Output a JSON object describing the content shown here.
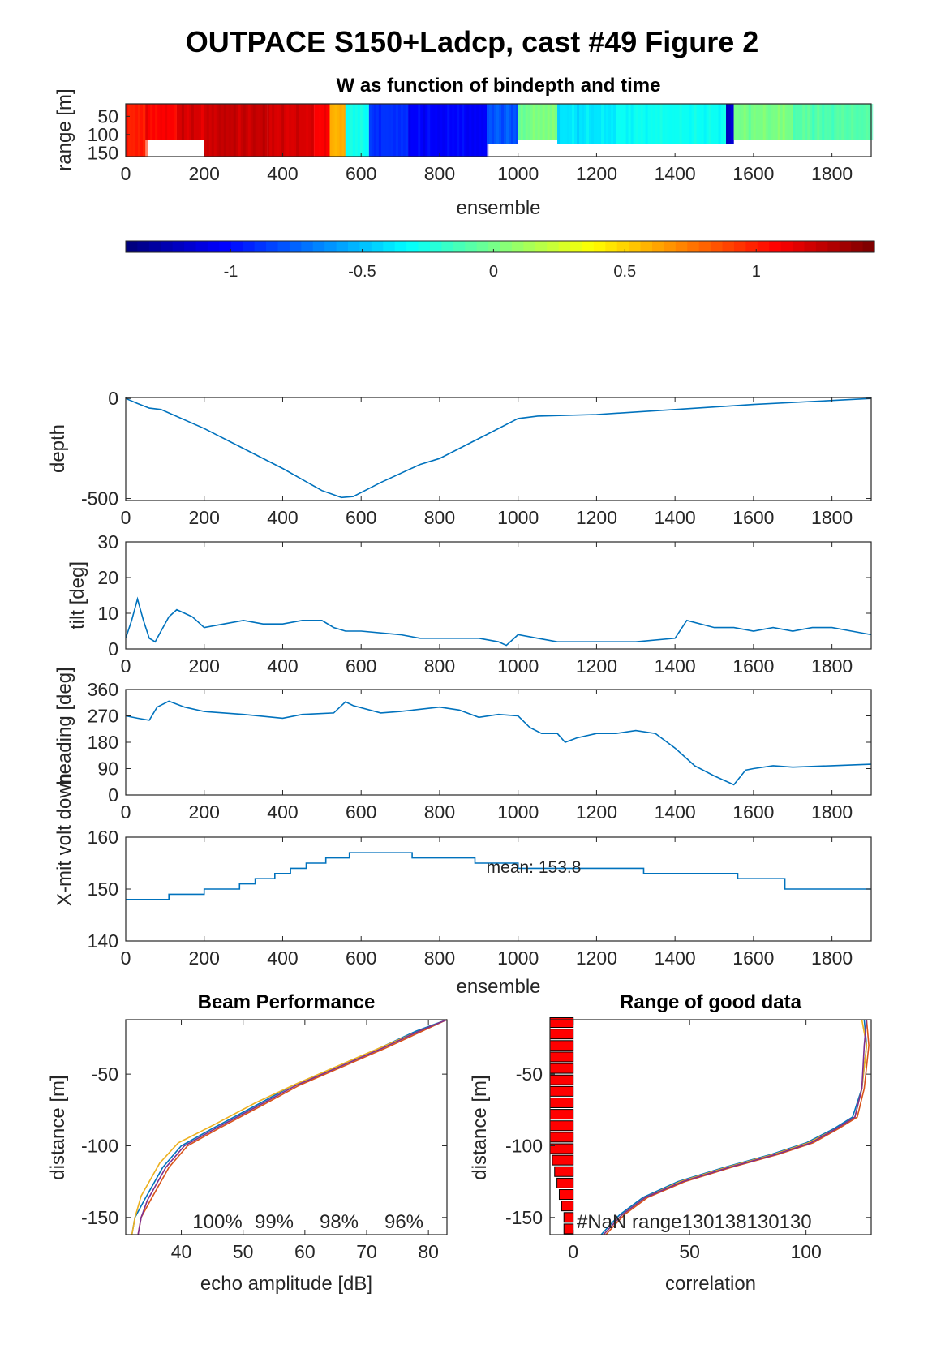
{
  "figure_title": "OUTPACE S150+Ladcp, cast #49 Figure 2",
  "chart_data": [
    {
      "id": "w",
      "type": "heatmap",
      "title": "W as function of bindepth and time",
      "xlabel": "ensemble",
      "ylabel": "range [m]",
      "xlim": [
        0,
        1900
      ],
      "ylim": [
        16,
        160
      ],
      "xticks": [
        0,
        200,
        400,
        600,
        800,
        1000,
        1200,
        1400,
        1600,
        1800
      ],
      "yticks": [
        50,
        100,
        150
      ],
      "colorbar": {
        "ticks": [
          -1,
          -0.5,
          0,
          0.5,
          1
        ],
        "tick_labels": [
          "-1",
          "-0.5",
          "0",
          "0.5",
          "1"
        ],
        "clim": [
          -1.4,
          1.45
        ]
      },
      "segments": [
        {
          "x": [
            0,
            50
          ],
          "w": 1.0,
          "bottom": 160
        },
        {
          "x": [
            50,
            130
          ],
          "w": 1.1,
          "bottom": 115
        },
        {
          "x": [
            130,
            200
          ],
          "w": 1.2,
          "bottom": 115
        },
        {
          "x": [
            200,
            360
          ],
          "w": 1.25,
          "bottom": 160
        },
        {
          "x": [
            360,
            480
          ],
          "w": 1.2,
          "bottom": 160
        },
        {
          "x": [
            480,
            520
          ],
          "w": 1.1,
          "bottom": 160
        },
        {
          "x": [
            520,
            560
          ],
          "w": 0.6,
          "bottom": 160
        },
        {
          "x": [
            560,
            620
          ],
          "w": -0.3,
          "bottom": 160
        },
        {
          "x": [
            620,
            720
          ],
          "w": -0.9,
          "bottom": 160
        },
        {
          "x": [
            720,
            920
          ],
          "w": -1.05,
          "bottom": 160
        },
        {
          "x": [
            920,
            1000
          ],
          "w": -0.8,
          "bottom": 125
        },
        {
          "x": [
            1000,
            1100
          ],
          "w": 0.0,
          "bottom": 115
        },
        {
          "x": [
            1100,
            1250
          ],
          "w": -0.4,
          "bottom": 125
        },
        {
          "x": [
            1250,
            1530
          ],
          "w": -0.3,
          "bottom": 125
        },
        {
          "x": [
            1530,
            1550
          ],
          "w": -1.2,
          "bottom": 125
        },
        {
          "x": [
            1550,
            1700
          ],
          "w": 0.0,
          "bottom": 115
        },
        {
          "x": [
            1700,
            1900
          ],
          "w": -0.1,
          "bottom": 115
        }
      ]
    },
    {
      "id": "depth",
      "type": "line",
      "ylabel": "depth",
      "xlim": [
        0,
        1900
      ],
      "ylim": [
        -510,
        5
      ],
      "xticks": [
        0,
        200,
        400,
        600,
        800,
        1000,
        1200,
        1400,
        1600,
        1800
      ],
      "yticks": [
        0,
        -500
      ],
      "x": [
        0,
        30,
        60,
        90,
        200,
        300,
        400,
        500,
        550,
        580,
        650,
        750,
        800,
        900,
        1000,
        1050,
        1200,
        1400,
        1600,
        1800,
        1900
      ],
      "y": [
        0,
        -25,
        -48,
        -55,
        -150,
        -250,
        -350,
        -460,
        -495,
        -490,
        -420,
        -330,
        -300,
        -200,
        -100,
        -88,
        -80,
        -55,
        -30,
        -10,
        0
      ]
    },
    {
      "id": "tilt",
      "type": "line",
      "ylabel": "tilt [deg]",
      "xlim": [
        0,
        1900
      ],
      "ylim": [
        0,
        30
      ],
      "xticks": [
        0,
        200,
        400,
        600,
        800,
        1000,
        1200,
        1400,
        1600,
        1800
      ],
      "yticks": [
        0,
        10,
        20,
        30
      ],
      "x": [
        0,
        15,
        30,
        45,
        60,
        75,
        90,
        110,
        130,
        150,
        170,
        190,
        200,
        250,
        300,
        350,
        400,
        450,
        500,
        530,
        560,
        600,
        700,
        750,
        800,
        900,
        950,
        970,
        1000,
        1050,
        1100,
        1200,
        1300,
        1400,
        1430,
        1500,
        1550,
        1600,
        1650,
        1700,
        1750,
        1800,
        1850,
        1900
      ],
      "y": [
        3,
        8,
        14,
        8,
        3,
        2,
        5,
        9,
        11,
        10,
        9,
        7,
        6,
        7,
        8,
        7,
        7,
        8,
        8,
        6,
        5,
        5,
        4,
        3,
        3,
        3,
        2,
        1,
        4,
        3,
        2,
        2,
        2,
        3,
        8,
        6,
        6,
        5,
        6,
        5,
        6,
        6,
        5,
        4
      ]
    },
    {
      "id": "heading",
      "type": "line",
      "ylabel": "heading [deg]",
      "xlim": [
        0,
        1900
      ],
      "ylim": [
        0,
        360
      ],
      "xticks": [
        0,
        200,
        400,
        600,
        800,
        1000,
        1200,
        1400,
        1600,
        1800
      ],
      "yticks": [
        0,
        90,
        180,
        270,
        360
      ],
      "x": [
        0,
        30,
        60,
        80,
        110,
        150,
        200,
        300,
        400,
        450,
        530,
        560,
        580,
        650,
        700,
        800,
        850,
        900,
        950,
        1000,
        1030,
        1060,
        1100,
        1120,
        1150,
        1200,
        1250,
        1300,
        1350,
        1400,
        1450,
        1500,
        1550,
        1580,
        1600,
        1650,
        1700,
        1800,
        1900
      ],
      "y": [
        270,
        262,
        255,
        300,
        320,
        300,
        285,
        275,
        262,
        275,
        280,
        318,
        305,
        280,
        285,
        300,
        290,
        265,
        275,
        270,
        230,
        210,
        210,
        180,
        195,
        210,
        210,
        220,
        210,
        160,
        100,
        65,
        35,
        85,
        90,
        100,
        95,
        100,
        105
      ]
    },
    {
      "id": "xmit",
      "type": "line",
      "xlabel": "ensemble",
      "ylabel": "X-mit volt down",
      "annotation": "mean: 153.8",
      "xlim": [
        0,
        1900
      ],
      "ylim": [
        140,
        160
      ],
      "xticks": [
        0,
        200,
        400,
        600,
        800,
        1000,
        1200,
        1400,
        1600,
        1800
      ],
      "yticks": [
        140,
        150,
        160
      ],
      "x": [
        0,
        50,
        110,
        110,
        200,
        200,
        290,
        290,
        330,
        330,
        380,
        380,
        420,
        420,
        460,
        460,
        510,
        510,
        570,
        570,
        730,
        730,
        890,
        890,
        1000,
        1000,
        1320,
        1320,
        1560,
        1560,
        1680,
        1680,
        1900
      ],
      "y": [
        148,
        148,
        148,
        149,
        149,
        150,
        150,
        151,
        151,
        152,
        152,
        153,
        153,
        154,
        154,
        155,
        155,
        156,
        156,
        157,
        157,
        156,
        156,
        155,
        155,
        154,
        154,
        153,
        153,
        152,
        152,
        150,
        150
      ]
    },
    {
      "id": "beam",
      "type": "line",
      "title": "Beam Performance",
      "xlabel": "echo amplitude [dB]",
      "ylabel": "distance [m]",
      "annotations": [
        "100%",
        "99%",
        "98%",
        "96%"
      ],
      "xlim": [
        31,
        83
      ],
      "ylim": [
        -162,
        -12
      ],
      "xticks": [
        40,
        50,
        60,
        70,
        80
      ],
      "yticks": [
        -50,
        -100,
        -150
      ],
      "series": [
        {
          "color": "#0072BD",
          "x": [
            32,
            32.5,
            34,
            37,
            40,
            45,
            52,
            58,
            65,
            72,
            78,
            83
          ],
          "y": [
            -162,
            -150,
            -138,
            -115,
            -100,
            -88,
            -72,
            -58,
            -45,
            -32,
            -20,
            -12
          ]
        },
        {
          "color": "#D95319",
          "x": [
            33,
            33.5,
            35,
            38,
            41,
            46,
            53,
            59,
            66,
            73,
            79,
            83
          ],
          "y": [
            -162,
            -150,
            -138,
            -115,
            -100,
            -88,
            -72,
            -58,
            -45,
            -32,
            -20,
            -12
          ]
        },
        {
          "color": "#EDB120",
          "x": [
            32,
            32.5,
            33.5,
            36.5,
            39.5,
            45,
            52,
            58.5,
            65.5,
            72.5,
            78.5,
            83
          ],
          "y": [
            -162,
            -150,
            -135,
            -112,
            -98,
            -86,
            -70,
            -57,
            -44,
            -31,
            -20,
            -12
          ]
        },
        {
          "color": "#7E2F8E",
          "x": [
            33,
            33.5,
            34.5,
            37.5,
            40.5,
            45.5,
            52.5,
            58.5,
            65.5,
            72.5,
            78.5,
            83
          ],
          "y": [
            -162,
            -150,
            -138,
            -115,
            -100,
            -88,
            -72,
            -58,
            -45,
            -32,
            -20,
            -12
          ]
        }
      ]
    },
    {
      "id": "good",
      "type": "line",
      "title": "Range of good data",
      "xlabel": "correlation",
      "ylabel": "distance [m]",
      "annotation": "#NaN range130138130130",
      "xlim": [
        -10,
        128
      ],
      "ylim": [
        -162,
        -12
      ],
      "xticks": [
        0,
        50,
        100
      ],
      "yticks": [
        -50,
        -100,
        -150
      ],
      "bars": {
        "color": "#ff0000",
        "y": [
          -14,
          -22,
          -30,
          -38,
          -46,
          -54,
          -62,
          -70,
          -78,
          -86,
          -94,
          -102,
          -110,
          -118,
          -126,
          -134,
          -142,
          -150,
          -158
        ],
        "width": [
          10,
          10,
          10,
          10,
          10,
          10,
          10,
          10,
          10,
          10,
          10,
          10,
          9,
          8,
          7,
          6,
          5,
          4,
          4
        ]
      },
      "series": [
        {
          "color": "#0072BD",
          "x": [
            12,
            20,
            30,
            45,
            65,
            85,
            100,
            112,
            120,
            124,
            126,
            125
          ],
          "y": [
            -162,
            -148,
            -136,
            -125,
            -115,
            -106,
            -98,
            -88,
            -80,
            -60,
            -30,
            -12
          ]
        },
        {
          "color": "#D95319",
          "x": [
            14,
            22,
            32,
            48,
            68,
            88,
            103,
            114,
            122,
            125,
            127,
            126
          ],
          "y": [
            -162,
            -148,
            -136,
            -125,
            -115,
            -106,
            -98,
            -88,
            -80,
            -60,
            -30,
            -12
          ]
        },
        {
          "color": "#EDB120",
          "x": [
            13,
            21,
            31,
            46,
            66,
            86,
            101,
            113,
            121,
            124,
            126,
            124
          ],
          "y": [
            -162,
            -148,
            -136,
            -125,
            -115,
            -106,
            -98,
            -88,
            -80,
            -60,
            -30,
            -12
          ]
        },
        {
          "color": "#7E2F8E",
          "x": [
            13,
            21,
            31,
            47,
            67,
            87,
            102,
            113,
            121,
            124,
            125,
            126
          ],
          "y": [
            -162,
            -148,
            -136,
            -125,
            -115,
            -106,
            -98,
            -88,
            -80,
            -60,
            -30,
            -12
          ]
        }
      ]
    }
  ],
  "panel_labels": {
    "depth_ylabel": "depth",
    "tilt_ylabel": "tilt [deg]",
    "heading_ylabel": "heading [deg]",
    "xmit_ylabel": "X-mit volt down",
    "ensemble": "ensemble"
  }
}
